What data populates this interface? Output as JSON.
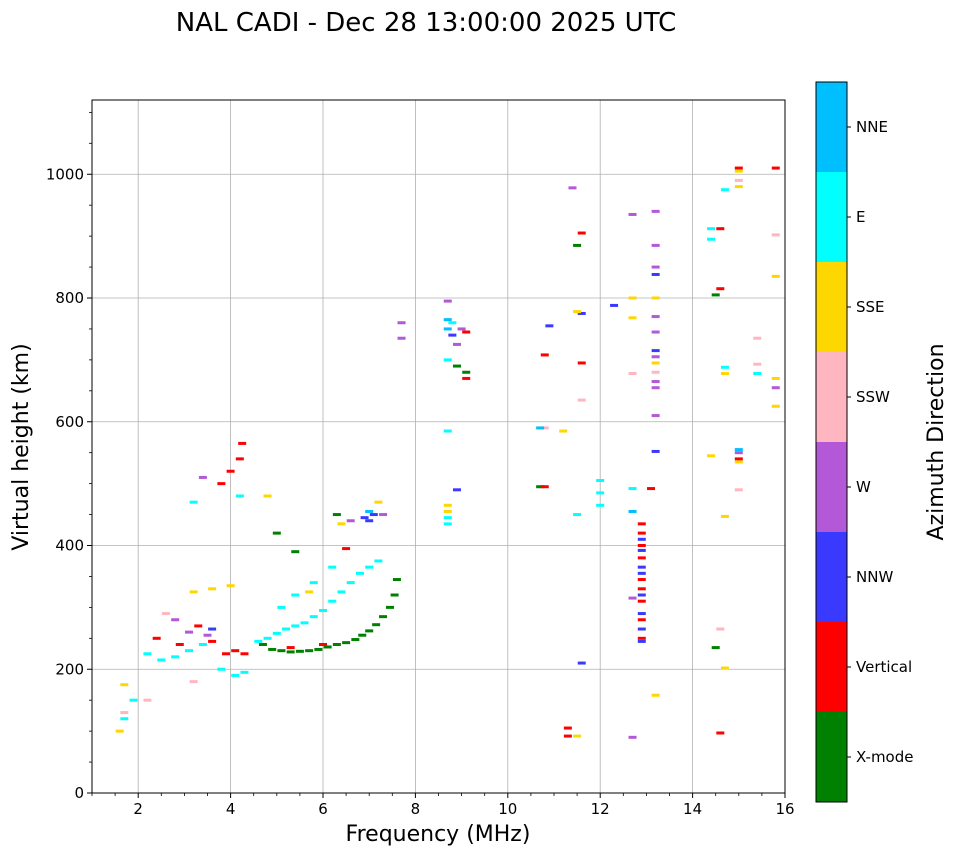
{
  "chart_data": {
    "type": "scatter",
    "title": "NAL CADI - Dec 28 13:00:00 2025 UTC",
    "xlabel": "Frequency (MHz)",
    "ylabel": "Virtual height (km)",
    "xlim": [
      1,
      16
    ],
    "ylim": [
      0,
      1120
    ],
    "xticks": [
      2,
      4,
      6,
      8,
      10,
      12,
      14,
      16
    ],
    "yticks": [
      0,
      200,
      400,
      600,
      800,
      1000
    ],
    "grid": true,
    "colorbar": {
      "title": "Azimuth Direction",
      "categories": [
        {
          "name": "X-mode",
          "color": "#008000"
        },
        {
          "name": "Vertical",
          "color": "#ff0000"
        },
        {
          "name": "NNW",
          "color": "#3a3aff"
        },
        {
          "name": "W",
          "color": "#b358d6"
        },
        {
          "name": "SSW",
          "color": "#ffb6c1"
        },
        {
          "name": "SSE",
          "color": "#ffd700"
        },
        {
          "name": "E",
          "color": "#00ffff"
        },
        {
          "name": "NNE",
          "color": "#00bfff"
        }
      ]
    },
    "series": [
      {
        "name": "X-mode",
        "points": [
          [
            4.9,
            232
          ],
          [
            5.1,
            230
          ],
          [
            5.3,
            228
          ],
          [
            5.5,
            229
          ],
          [
            5.7,
            230
          ],
          [
            5.9,
            232
          ],
          [
            6.1,
            236
          ],
          [
            6.3,
            240
          ],
          [
            6.5,
            243
          ],
          [
            6.7,
            248
          ],
          [
            6.85,
            255
          ],
          [
            7.0,
            262
          ],
          [
            7.15,
            272
          ],
          [
            7.3,
            285
          ],
          [
            7.45,
            300
          ],
          [
            7.55,
            320
          ],
          [
            7.6,
            345
          ],
          [
            4.7,
            240
          ],
          [
            5.0,
            420
          ],
          [
            5.4,
            390
          ],
          [
            6.3,
            450
          ],
          [
            10.7,
            495
          ],
          [
            11.5,
            885
          ],
          [
            14.5,
            235
          ],
          [
            14.5,
            805
          ],
          [
            8.9,
            690
          ],
          [
            9.1,
            680
          ]
        ]
      },
      {
        "name": "Vertical",
        "points": [
          [
            2.4,
            250
          ],
          [
            2.9,
            240
          ],
          [
            3.3,
            270
          ],
          [
            3.6,
            245
          ],
          [
            3.9,
            225
          ],
          [
            4.1,
            230
          ],
          [
            4.3,
            225
          ],
          [
            3.8,
            500
          ],
          [
            4.0,
            520
          ],
          [
            4.2,
            540
          ],
          [
            4.25,
            565
          ],
          [
            5.3,
            235
          ],
          [
            6.0,
            240
          ],
          [
            6.5,
            395
          ],
          [
            12.9,
            250
          ],
          [
            12.9,
            280
          ],
          [
            12.9,
            310
          ],
          [
            12.9,
            330
          ],
          [
            12.9,
            345
          ],
          [
            12.9,
            380
          ],
          [
            12.9,
            400
          ],
          [
            12.9,
            420
          ],
          [
            12.9,
            435
          ],
          [
            13.1,
            492
          ],
          [
            10.8,
            495
          ],
          [
            10.8,
            708
          ],
          [
            11.6,
            695
          ],
          [
            11.6,
            905
          ],
          [
            14.6,
            97
          ],
          [
            14.6,
            815
          ],
          [
            14.6,
            912
          ],
          [
            15.0,
            1010
          ],
          [
            15.8,
            1010
          ],
          [
            11.3,
            92
          ],
          [
            11.3,
            105
          ],
          [
            9.1,
            670
          ],
          [
            9.1,
            745
          ],
          [
            15.0,
            540
          ]
        ]
      },
      {
        "name": "NNW",
        "points": [
          [
            7.0,
            440
          ],
          [
            7.1,
            450
          ],
          [
            6.9,
            445
          ],
          [
            12.9,
            245
          ],
          [
            12.9,
            265
          ],
          [
            12.9,
            290
          ],
          [
            12.9,
            320
          ],
          [
            12.9,
            355
          ],
          [
            12.9,
            365
          ],
          [
            12.9,
            392
          ],
          [
            12.9,
            410
          ],
          [
            8.9,
            490
          ],
          [
            8.8,
            740
          ],
          [
            10.9,
            755
          ],
          [
            11.6,
            210
          ],
          [
            11.6,
            775
          ],
          [
            12.3,
            788
          ],
          [
            13.2,
            552
          ],
          [
            13.2,
            715
          ],
          [
            13.2,
            838
          ],
          [
            3.6,
            265
          ]
        ]
      },
      {
        "name": "W",
        "points": [
          [
            2.8,
            280
          ],
          [
            3.1,
            260
          ],
          [
            3.5,
            255
          ],
          [
            6.6,
            440
          ],
          [
            7.3,
            450
          ],
          [
            8.7,
            795
          ],
          [
            8.9,
            725
          ],
          [
            9.0,
            750
          ],
          [
            11.4,
            978
          ],
          [
            12.7,
            935
          ],
          [
            13.2,
            940
          ],
          [
            13.2,
            885
          ],
          [
            13.2,
            770
          ],
          [
            13.2,
            665
          ],
          [
            13.2,
            610
          ],
          [
            12.7,
            315
          ],
          [
            12.7,
            90
          ],
          [
            15.8,
            655
          ],
          [
            15.0,
            550
          ],
          [
            7.7,
            760
          ],
          [
            7.7,
            735
          ],
          [
            13.2,
            745
          ],
          [
            13.2,
            705
          ],
          [
            13.2,
            655
          ],
          [
            13.2,
            850
          ],
          [
            3.4,
            510
          ]
        ]
      },
      {
        "name": "SSW",
        "points": [
          [
            1.7,
            130
          ],
          [
            2.2,
            150
          ],
          [
            2.6,
            290
          ],
          [
            3.2,
            180
          ],
          [
            12.7,
            678
          ],
          [
            11.6,
            635
          ],
          [
            15.0,
            490
          ],
          [
            15.0,
            990
          ],
          [
            15.4,
            735
          ],
          [
            15.4,
            693
          ],
          [
            15.8,
            902
          ],
          [
            14.6,
            265
          ],
          [
            10.8,
            590
          ],
          [
            13.2,
            680
          ]
        ]
      },
      {
        "name": "SSE",
        "points": [
          [
            1.6,
            100
          ],
          [
            1.7,
            175
          ],
          [
            3.2,
            325
          ],
          [
            3.6,
            330
          ],
          [
            4.0,
            335
          ],
          [
            4.8,
            480
          ],
          [
            5.7,
            325
          ],
          [
            6.4,
            435
          ],
          [
            7.2,
            470
          ],
          [
            8.7,
            465
          ],
          [
            8.7,
            455
          ],
          [
            11.2,
            585
          ],
          [
            11.5,
            778
          ],
          [
            12.7,
            800
          ],
          [
            12.7,
            768
          ],
          [
            13.2,
            800
          ],
          [
            13.2,
            695
          ],
          [
            13.2,
            158
          ],
          [
            14.4,
            545
          ],
          [
            14.7,
            447
          ],
          [
            14.7,
            678
          ],
          [
            15.0,
            535
          ],
          [
            15.0,
            980
          ],
          [
            15.0,
            1005
          ],
          [
            15.8,
            835
          ],
          [
            15.8,
            670
          ],
          [
            15.8,
            625
          ],
          [
            14.7,
            202
          ],
          [
            11.5,
            92
          ]
        ]
      },
      {
        "name": "E",
        "points": [
          [
            1.7,
            120
          ],
          [
            1.9,
            150
          ],
          [
            2.2,
            225
          ],
          [
            2.5,
            215
          ],
          [
            2.8,
            220
          ],
          [
            3.1,
            230
          ],
          [
            3.4,
            240
          ],
          [
            3.8,
            200
          ],
          [
            4.1,
            190
          ],
          [
            4.3,
            195
          ],
          [
            4.6,
            245
          ],
          [
            4.8,
            250
          ],
          [
            5.0,
            258
          ],
          [
            5.2,
            265
          ],
          [
            5.4,
            270
          ],
          [
            5.6,
            275
          ],
          [
            5.8,
            285
          ],
          [
            6.0,
            295
          ],
          [
            6.2,
            310
          ],
          [
            6.4,
            325
          ],
          [
            6.6,
            340
          ],
          [
            6.8,
            355
          ],
          [
            7.0,
            365
          ],
          [
            7.2,
            375
          ],
          [
            5.1,
            300
          ],
          [
            5.4,
            320
          ],
          [
            5.8,
            340
          ],
          [
            6.2,
            365
          ],
          [
            8.7,
            445
          ],
          [
            8.7,
            435
          ],
          [
            8.7,
            585
          ],
          [
            8.7,
            700
          ],
          [
            8.8,
            760
          ],
          [
            11.5,
            450
          ],
          [
            12.0,
            505
          ],
          [
            12.0,
            485
          ],
          [
            12.0,
            465
          ],
          [
            12.7,
            492
          ],
          [
            14.4,
            912
          ],
          [
            14.4,
            895
          ],
          [
            14.7,
            975
          ],
          [
            14.7,
            688
          ],
          [
            15.4,
            678
          ],
          [
            4.2,
            480
          ],
          [
            3.2,
            470
          ]
        ]
      },
      {
        "name": "NNE",
        "points": [
          [
            8.7,
            765
          ],
          [
            8.7,
            750
          ],
          [
            10.7,
            590
          ],
          [
            15.0,
            555
          ],
          [
            12.7,
            455
          ],
          [
            7.0,
            455
          ]
        ]
      }
    ]
  }
}
